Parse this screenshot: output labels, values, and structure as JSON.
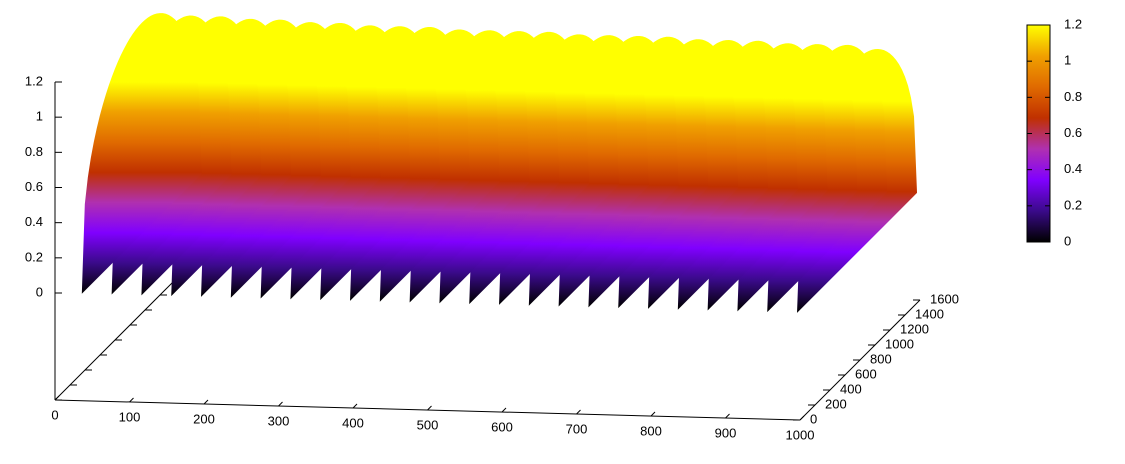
{
  "chart_data": {
    "type": "surface",
    "x": [
      0,
      40,
      80,
      120,
      160,
      200,
      240,
      280,
      320,
      360,
      400,
      440,
      480,
      520,
      560,
      600,
      640,
      680,
      720,
      760,
      800,
      840,
      880,
      920,
      960
    ],
    "values": [
      1.2,
      1.19,
      1.19,
      1.18,
      1.18,
      1.17,
      1.17,
      1.16,
      1.16,
      1.16,
      1.15,
      1.15,
      1.15,
      1.15,
      1.14,
      1.14,
      1.14,
      1.14,
      1.13,
      1.13,
      1.13,
      1.12,
      1.12,
      1.12,
      1.1
    ],
    "xlim": [
      0,
      1000
    ],
    "ylim": [
      0,
      1600
    ],
    "zlim": [
      0,
      1.2
    ],
    "xticks": [
      0,
      100,
      200,
      300,
      400,
      500,
      600,
      700,
      800,
      900,
      1000
    ],
    "yticks": [
      0,
      200,
      400,
      600,
      800,
      1000,
      1200,
      1400,
      1600
    ],
    "zticks": [
      0,
      0.2,
      0.4,
      0.6,
      0.8,
      1,
      1.2
    ],
    "cblim": [
      0,
      1.2
    ],
    "cbticks": [
      0,
      0.2,
      0.4,
      0.6,
      0.8,
      1,
      1.2
    ],
    "palette": [
      "#000000",
      "#3a0a8a",
      "#8000ff",
      "#b030b0",
      "#c03000",
      "#e06a00",
      "#f0a000",
      "#ffff00"
    ]
  }
}
